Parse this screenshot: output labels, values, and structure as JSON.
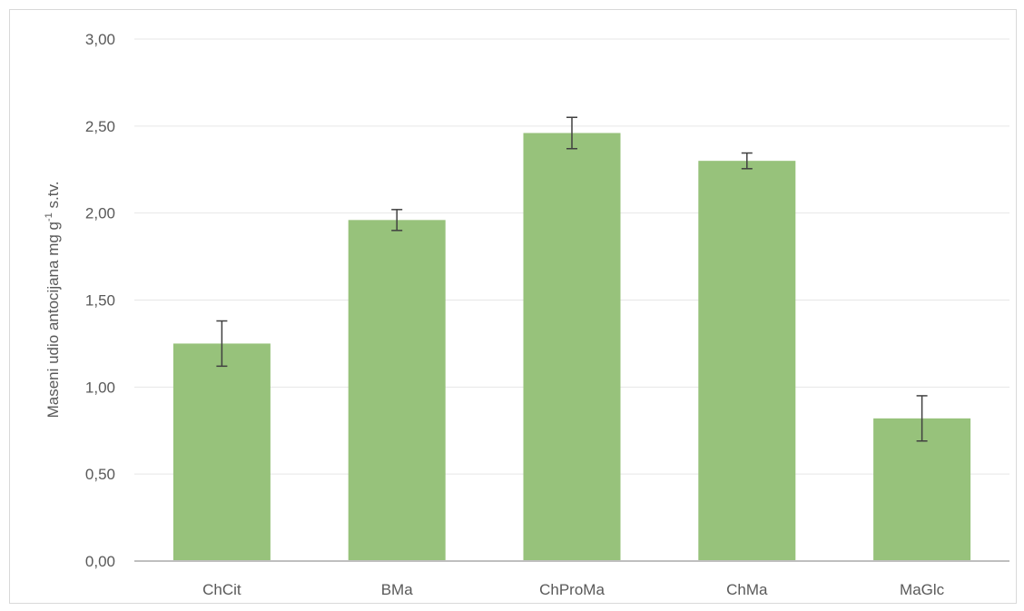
{
  "chart_data": {
    "type": "bar",
    "title": "",
    "xlabel": "",
    "ylabel": {
      "main": "Maseni udio antocijana mg g",
      "sup": "-1",
      "tail": " s.tv."
    },
    "categories": [
      "ChCit",
      "BMa",
      "ChProMa",
      "ChMa",
      "MaGlc"
    ],
    "values": [
      1.25,
      1.96,
      2.46,
      2.3,
      0.82
    ],
    "error": [
      0.13,
      0.06,
      0.09,
      0.045,
      0.13
    ],
    "ylim": [
      0,
      3
    ],
    "yticks": [
      0,
      0.5,
      1,
      1.5,
      2,
      2.5,
      3
    ],
    "ytick_labels": [
      "0,00",
      "0,50",
      "1,00",
      "1,50",
      "2,00",
      "2,50",
      "3,00"
    ],
    "grid": true,
    "bar_color": "#97c27b",
    "grid_color": "#e7e7e7",
    "axis_color": "#bfbfbf",
    "error_color": "#404040"
  }
}
